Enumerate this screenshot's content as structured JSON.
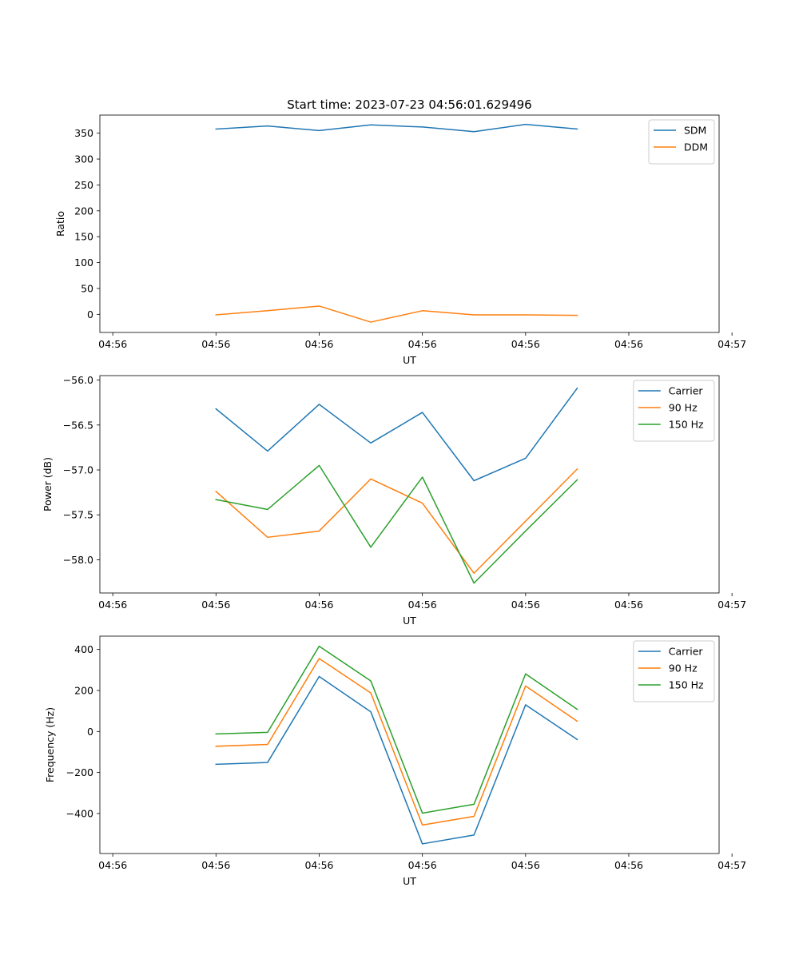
{
  "title": "Start time: 2023-07-23 04:56:01.629496",
  "colors": {
    "blue": "#1f77b4",
    "orange": "#ff7f0e",
    "green": "#2ca02c"
  },
  "chart_data": [
    {
      "type": "line",
      "title": "Start time: 2023-07-23 04:56:01.629496",
      "xlabel": "UT",
      "ylabel": "Ratio",
      "x": [
        0.45,
        0.65,
        0.85,
        1.05,
        1.25,
        1.45,
        1.65,
        1.85
      ],
      "xlim": [
        0.0,
        2.4
      ],
      "xticks": [
        0.05,
        0.45,
        0.85,
        1.25,
        1.65,
        2.05,
        2.45
      ],
      "xtick_labels": [
        "04:56",
        "04:56",
        "04:56",
        "04:56",
        "04:56",
        "04:56",
        "04:57"
      ],
      "ylim": [
        -35,
        385
      ],
      "yticks": [
        0,
        50,
        100,
        150,
        200,
        250,
        300,
        350
      ],
      "ytick_labels": [
        "0",
        "50",
        "100",
        "150",
        "200",
        "250",
        "300",
        "350"
      ],
      "legend": "top-right",
      "series": [
        {
          "name": "SDM",
          "color": "#1f77b4",
          "values": [
            358,
            364,
            355,
            366,
            362,
            353,
            367,
            358
          ]
        },
        {
          "name": "DDM",
          "color": "#ff7f0e",
          "values": [
            -1,
            7,
            16,
            -15,
            7,
            -1,
            -1,
            -2
          ]
        }
      ]
    },
    {
      "type": "line",
      "xlabel": "UT",
      "ylabel": "Power (dB)",
      "x": [
        0.45,
        0.65,
        0.85,
        1.05,
        1.25,
        1.45,
        1.65,
        1.85
      ],
      "xlim": [
        0.0,
        2.4
      ],
      "xticks": [
        0.05,
        0.45,
        0.85,
        1.25,
        1.65,
        2.05,
        2.45
      ],
      "xtick_labels": [
        "04:56",
        "04:56",
        "04:56",
        "04:56",
        "04:56",
        "04:56",
        "04:57"
      ],
      "ylim": [
        -58.37,
        -55.95
      ],
      "yticks": [
        -58.0,
        -57.5,
        -57.0,
        -56.5,
        -56.0
      ],
      "ytick_labels": [
        "−58.0",
        "−57.5",
        "−57.0",
        "−56.5",
        "−56.0"
      ],
      "legend": "top-right",
      "series": [
        {
          "name": "Carrier",
          "color": "#1f77b4",
          "values": [
            -56.32,
            -56.79,
            -56.27,
            -56.7,
            -56.36,
            -57.12,
            -56.87,
            -56.09
          ]
        },
        {
          "name": "90 Hz",
          "color": "#ff7f0e",
          "values": [
            -57.24,
            -57.75,
            -57.68,
            -57.1,
            -57.37,
            -58.15,
            -57.57,
            -56.99
          ]
        },
        {
          "name": "150 Hz",
          "color": "#2ca02c",
          "values": [
            -57.33,
            -57.44,
            -56.95,
            -57.86,
            -57.08,
            -58.26,
            -57.68,
            -57.11
          ]
        }
      ]
    },
    {
      "type": "line",
      "xlabel": "UT",
      "ylabel": "Frequency (Hz)",
      "x": [
        0.45,
        0.65,
        0.85,
        1.05,
        1.25,
        1.45,
        1.65,
        1.85
      ],
      "xlim": [
        0.0,
        2.4
      ],
      "xticks": [
        0.05,
        0.45,
        0.85,
        1.25,
        1.65,
        2.05,
        2.45
      ],
      "xtick_labels": [
        "04:56",
        "04:56",
        "04:56",
        "04:56",
        "04:56",
        "04:56",
        "04:57"
      ],
      "ylim": [
        -595,
        465
      ],
      "yticks": [
        -400,
        -200,
        0,
        200,
        400
      ],
      "ytick_labels": [
        "−400",
        "−200",
        "0",
        "200",
        "400"
      ],
      "legend": "top-right",
      "series": [
        {
          "name": "Carrier",
          "color": "#1f77b4",
          "values": [
            -160,
            -151,
            268,
            96,
            -548,
            -505,
            130,
            -39
          ]
        },
        {
          "name": "90 Hz",
          "color": "#ff7f0e",
          "values": [
            -72,
            -63,
            356,
            188,
            -456,
            -414,
            222,
            50
          ]
        },
        {
          "name": "150 Hz",
          "color": "#2ca02c",
          "values": [
            -12,
            -4,
            416,
            247,
            -398,
            -355,
            281,
            108
          ]
        }
      ]
    }
  ]
}
